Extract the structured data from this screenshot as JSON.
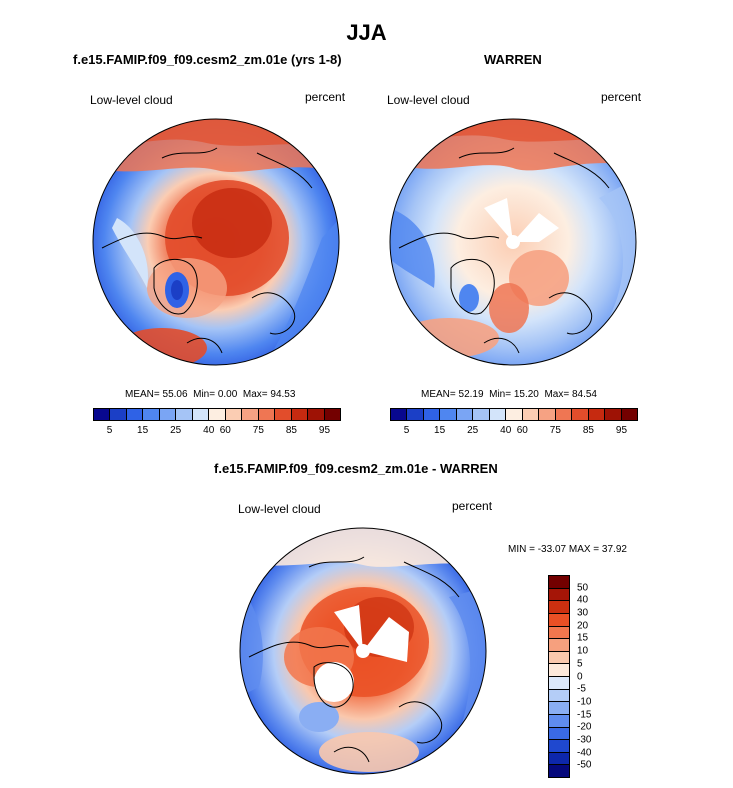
{
  "figure": {
    "title": "JJA",
    "left_panel": {
      "title": "f.e15.FAMIP.f09_f09.cesm2_zm.01e (yrs 1-8)",
      "variable": "Low-level cloud",
      "units": "percent",
      "stats": {
        "mean": "MEAN= 55.06",
        "min": "Min=  0.00",
        "max": "Max= 94.53"
      }
    },
    "right_panel": {
      "title": "WARREN",
      "variable": "Low-level cloud",
      "units": "percent",
      "stats": {
        "mean": "MEAN= 52.19",
        "min": "Min= 15.20",
        "max": "Max= 84.54"
      }
    },
    "diff_panel": {
      "title": "f.e15.FAMIP.f09_f09.cesm2_zm.01e - WARREN",
      "variable": "Low-level cloud",
      "units": "percent",
      "stats": "MIN = -33.07 MAX =  37.92"
    }
  },
  "abs_colorbar": {
    "colors": [
      "#08088f",
      "#1b3fc6",
      "#2f62e6",
      "#4f86f0",
      "#7aa5f4",
      "#a5c4f6",
      "#d3e4fa",
      "#fdeee1",
      "#fbcdb3",
      "#f6a283",
      "#ef7653",
      "#e24d2b",
      "#c62a10",
      "#9e1205",
      "#730000"
    ],
    "tick_labels": [
      "5",
      "15",
      "25",
      "40",
      "60",
      "75",
      "85",
      "95"
    ],
    "tick_positions": [
      1,
      3,
      5,
      7,
      8,
      10,
      12,
      14
    ]
  },
  "diff_colorbar": {
    "colors": [
      "#730000",
      "#a51507",
      "#cc3010",
      "#ea5025",
      "#f2774e",
      "#f6a07e",
      "#fac8ad",
      "#fde9db",
      "#dde9fb",
      "#b4cdf7",
      "#8aaef3",
      "#5f8cef",
      "#3a6ae6",
      "#1f48cf",
      "#0d27ab",
      "#05087c"
    ],
    "tick_labels": [
      "50",
      "40",
      "30",
      "20",
      "15",
      "10",
      "5",
      "0",
      "-5",
      "-10",
      "-15",
      "-20",
      "-30",
      "-40",
      "-50"
    ]
  }
}
